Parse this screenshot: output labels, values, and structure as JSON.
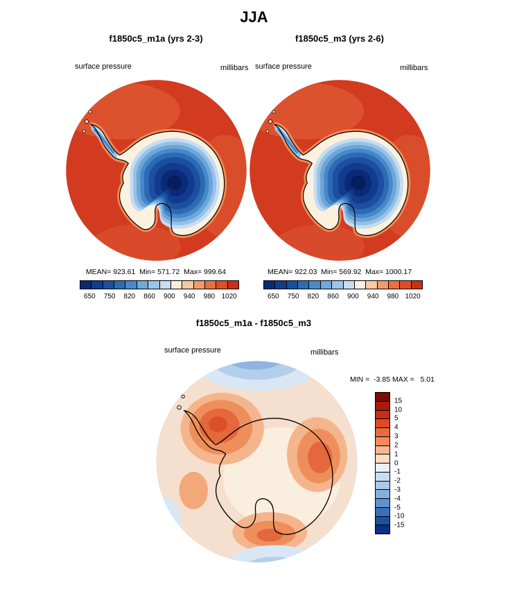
{
  "title": "JJA",
  "panels": {
    "left": {
      "title": "f1850c5_m1a (yrs 2-3)",
      "field_label": "surface pressure",
      "units": "millibars",
      "stats": "MEAN= 923.61  Min= 571.72  Max= 999.64"
    },
    "right": {
      "title": "f1850c5_m3 (yrs 2-6)",
      "field_label": "surface pressure",
      "units": "millibars",
      "stats": "MEAN= 922.03  Min= 569.92  Max= 1000.17"
    },
    "diff": {
      "title": "f1850c5_m1a - f1850c5_m3",
      "field_label": "surface pressure",
      "units": "millibars",
      "stats": "MIN =  -3.85 MAX =   5.01"
    }
  },
  "chart_data": [
    {
      "type": "heatmap",
      "subtype": "filled-contour-map",
      "projection": "south-polar-stereographic",
      "region": "Antarctica",
      "season": "JJA",
      "title": "f1850c5_m1a (yrs 2-3)",
      "variable": "surface pressure",
      "units": "millibars",
      "stats": {
        "mean": 923.61,
        "min": 571.72,
        "max": 999.64
      },
      "colorbar": {
        "orientation": "horizontal",
        "tick_labels": [
          "650",
          "750",
          "820",
          "860",
          "900",
          "940",
          "980",
          "1020"
        ],
        "colors": [
          "#0A2A74",
          "#123C8E",
          "#1D4FA0",
          "#2F6CB4",
          "#4A8AC8",
          "#6FA8DA",
          "#9CC4E8",
          "#C7DEF1",
          "#FBEEDC",
          "#F8C8A4",
          "#F39A6B",
          "#E96F42",
          "#DE4E28",
          "#C93112"
        ]
      }
    },
    {
      "type": "heatmap",
      "subtype": "filled-contour-map",
      "projection": "south-polar-stereographic",
      "region": "Antarctica",
      "season": "JJA",
      "title": "f1850c5_m3 (yrs 2-6)",
      "variable": "surface pressure",
      "units": "millibars",
      "stats": {
        "mean": 922.03,
        "min": 569.92,
        "max": 1000.17
      },
      "colorbar": {
        "orientation": "horizontal",
        "tick_labels": [
          "650",
          "750",
          "820",
          "860",
          "900",
          "940",
          "980",
          "1020"
        ],
        "colors": [
          "#0A2A74",
          "#123C8E",
          "#1D4FA0",
          "#2F6CB4",
          "#4A8AC8",
          "#6FA8DA",
          "#9CC4E8",
          "#C7DEF1",
          "#FBEEDC",
          "#F8C8A4",
          "#F39A6B",
          "#E96F42",
          "#DE4E28",
          "#C93112"
        ]
      }
    },
    {
      "type": "heatmap",
      "subtype": "filled-contour-difference-map",
      "projection": "south-polar-stereographic",
      "region": "Antarctica",
      "season": "JJA",
      "title": "f1850c5_m1a - f1850c5_m3",
      "variable": "surface pressure",
      "units": "millibars",
      "stats": {
        "min": -3.85,
        "max": 5.01
      },
      "colorbar": {
        "orientation": "vertical",
        "tick_labels": [
          "15",
          "10",
          "5",
          "4",
          "3",
          "2",
          "1",
          "0",
          "-1",
          "-2",
          "-3",
          "-4",
          "-5",
          "-10",
          "-15"
        ],
        "colors": [
          "#7A0B06",
          "#A81B09",
          "#C92E12",
          "#DD4A24",
          "#E96A3C",
          "#F18B5E",
          "#F7B68D",
          "#FBDCC4",
          "#E8F0F9",
          "#C9DDF0",
          "#A9C9E8",
          "#85B0DC",
          "#5F92CC",
          "#3B70B8",
          "#1F4FA3",
          "#0D2E85"
        ]
      }
    }
  ]
}
